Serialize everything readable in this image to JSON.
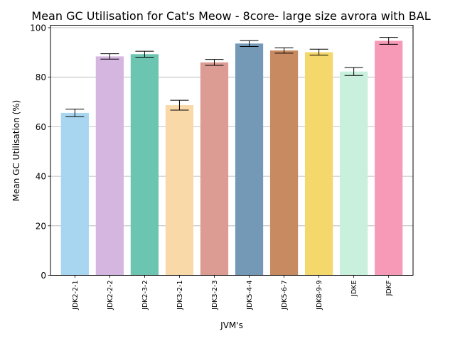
{
  "chart_data": {
    "type": "bar",
    "title": "Mean GC Utilisation for Cat's Meow - 8core- large size avrora with BAL",
    "xlabel": "JVM's",
    "ylabel": "Mean GC Utilisation (%)",
    "ylim": [
      0,
      101
    ],
    "yticks": [
      0,
      20,
      40,
      60,
      80,
      100
    ],
    "grid": "horizontal",
    "categories": [
      "JDK2-2-1",
      "JDK2-2-2",
      "JDK2-3-2",
      "JDK3-2-1",
      "JDK3-2-3",
      "JDK5-4-4",
      "JDK5-6-7",
      "JDK8-9-9",
      "JDKE",
      "JDKF"
    ],
    "values": [
      65.6,
      88.4,
      89.3,
      68.7,
      86.0,
      93.6,
      90.8,
      90.1,
      82.3,
      94.7
    ],
    "errors": [
      1.5,
      1.1,
      1.2,
      2.0,
      1.2,
      1.2,
      1.1,
      1.2,
      1.6,
      1.4
    ],
    "colors": [
      "#a8d5f0",
      "#d4b6e0",
      "#6cc5b0",
      "#f9d9a8",
      "#dc9c94",
      "#7399b6",
      "#c88b61",
      "#f4d86c",
      "#c8f0dc",
      "#f79ab8"
    ]
  }
}
